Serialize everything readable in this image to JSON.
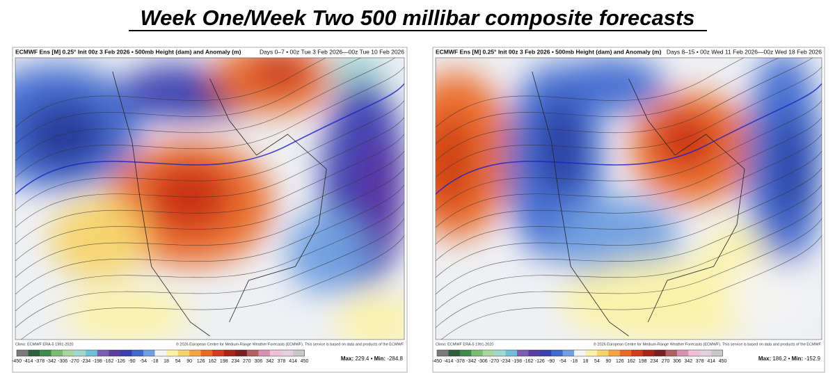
{
  "title": "Week One/Week Two 500 millibar composite forecasts",
  "colorbar": {
    "ticks": [
      -450,
      -414,
      -378,
      -342,
      -306,
      -270,
      -234,
      -198,
      -162,
      -126,
      -90,
      -54,
      -18,
      18,
      54,
      90,
      126,
      162,
      198,
      234,
      270,
      306,
      342,
      378,
      414,
      450
    ],
    "colors": [
      "#7a7a7a",
      "#2f5e3a",
      "#3f8a4c",
      "#7dbb74",
      "#a9d6a0",
      "#9fd8d0",
      "#6fc0d6",
      "#7a5fb0",
      "#5a3fa0",
      "#3a3fb0",
      "#3f6ad0",
      "#6f9fe0",
      "#f4f4f4",
      "#fbf2a8",
      "#f7d46a",
      "#f2a640",
      "#eb6a28",
      "#d43a1c",
      "#a8241a",
      "#7a2020",
      "#b06060",
      "#d890b0",
      "#f0c0d8",
      "#e0d0e0",
      "#c8c8c8"
    ]
  },
  "panels": [
    {
      "header_left": "ECMWF Ens [M] 0.25° Init 00z 3 Feb 2026 • 500mb Height (dam) and Anomaly (m)",
      "header_right": "Days 0–7 • 00z Tue 3 Feb 2026—00z Tue 10 Feb 2026",
      "climo": "Climo: ECMWF ERA-5 1991-2020",
      "copyright": "© 2026 European Centre for Medium-Range Weather Forecasts (ECMWF). This service is based on data and products of the ECMWF.",
      "max_label": "Max:",
      "max": 229.4,
      "min_label": "Min:",
      "min": -284.8
    },
    {
      "header_left": "ECMWF Ens [M] 0.25° Init 00z 3 Feb 2026 • 500mb Height (dam) and Anomaly (m)",
      "header_right": "Days 8–15 • 00z Wed 11 Feb 2026—00z Wed 18 Feb 2026",
      "climo": "Climo: ECMWF ERA-5 1991-2020",
      "copyright": "© 2026 European Centre for Medium-Range Weather Forecasts (ECMWF). This service is based on data and products of the ECMWF.",
      "max_label": "Max:",
      "max": 186.2,
      "min_label": "Min:",
      "min": -152.9
    }
  ]
}
